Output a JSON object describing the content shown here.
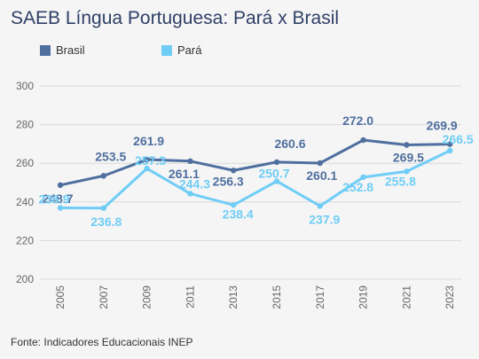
{
  "title": "SAEB Língua Portuguesa: Pará x Brasil",
  "source": "Fonte: Indicadores Educacionais INEP",
  "chart_data": {
    "type": "line",
    "x": [
      "2005",
      "2007",
      "2009",
      "2011",
      "2013",
      "2015",
      "2017",
      "2019",
      "2021",
      "2023"
    ],
    "ylim": [
      200,
      300
    ],
    "yticks": [
      200,
      220,
      240,
      260,
      280,
      300
    ],
    "grid": true,
    "legend_position": "top-left",
    "series": [
      {
        "name": "Brasil",
        "color": "#4f6f9f",
        "values": [
          248.7,
          253.5,
          261.9,
          261.1,
          256.3,
          260.6,
          260.1,
          272.0,
          269.5,
          269.9
        ],
        "labels": [
          "248.7",
          "253.5",
          "261.9",
          "261.1",
          "256.3",
          "260.6",
          "260.1",
          "272.0",
          "269.5",
          "269.9"
        ]
      },
      {
        "name": "Pará",
        "color": "#6fcdf6",
        "values": [
          236.9,
          236.8,
          257.3,
          244.3,
          238.4,
          250.7,
          237.9,
          252.8,
          255.8,
          266.5
        ],
        "labels": [
          "236.9",
          "236.8",
          "257.3",
          "244.3",
          "238.4",
          "250.7",
          "237.9",
          "252.8",
          "255.8",
          "266.5"
        ]
      }
    ]
  }
}
